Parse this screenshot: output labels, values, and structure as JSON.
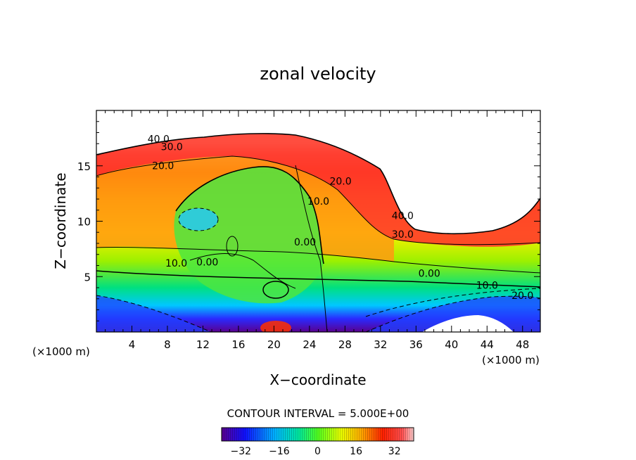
{
  "chart_data": {
    "type": "heatmap",
    "title": "zonal velocity",
    "xlabel": "X−coordinate",
    "ylabel": "Z−coordinate",
    "x_unit_left": "(×1000 m)",
    "x_unit_right": "(×1000 m)",
    "x_ticks": [
      4,
      8,
      12,
      16,
      20,
      24,
      28,
      32,
      36,
      40,
      44,
      48
    ],
    "y_ticks": [
      5,
      10,
      15
    ],
    "xlim": [
      0,
      50
    ],
    "ylim": [
      0,
      20
    ],
    "contour_interval_text": "CONTOUR INTERVAL = 5.000E+00",
    "colorbar": {
      "range": [
        -40,
        40
      ],
      "ticks": [
        -32,
        -16,
        0,
        16,
        32
      ],
      "tick_labels": [
        "−32",
        "−16",
        "0",
        "16",
        "32"
      ]
    },
    "contour_labels": [
      {
        "text": "40.0",
        "x": 7.0,
        "z": 17.1
      },
      {
        "text": "30.0",
        "x": 8.5,
        "z": 16.4
      },
      {
        "text": "20.0",
        "x": 7.5,
        "z": 14.7
      },
      {
        "text": "20.0",
        "x": 27.5,
        "z": 13.3
      },
      {
        "text": "10.0",
        "x": 25.0,
        "z": 11.5
      },
      {
        "text": "40.0",
        "x": 34.5,
        "z": 10.2
      },
      {
        "text": "30.0",
        "x": 34.5,
        "z": 8.5
      },
      {
        "text": "0.00",
        "x": 23.5,
        "z": 7.8
      },
      {
        "text": "10.0",
        "x": 9.0,
        "z": 5.9
      },
      {
        "text": "0.00",
        "x": 12.5,
        "z": 6.0
      },
      {
        "text": "0.00",
        "x": 37.5,
        "z": 5.0
      },
      {
        "text": "10.0",
        "x": 44.0,
        "z": 3.9
      },
      {
        "text": "20.0",
        "x": 48.0,
        "z": 3.0
      }
    ]
  }
}
